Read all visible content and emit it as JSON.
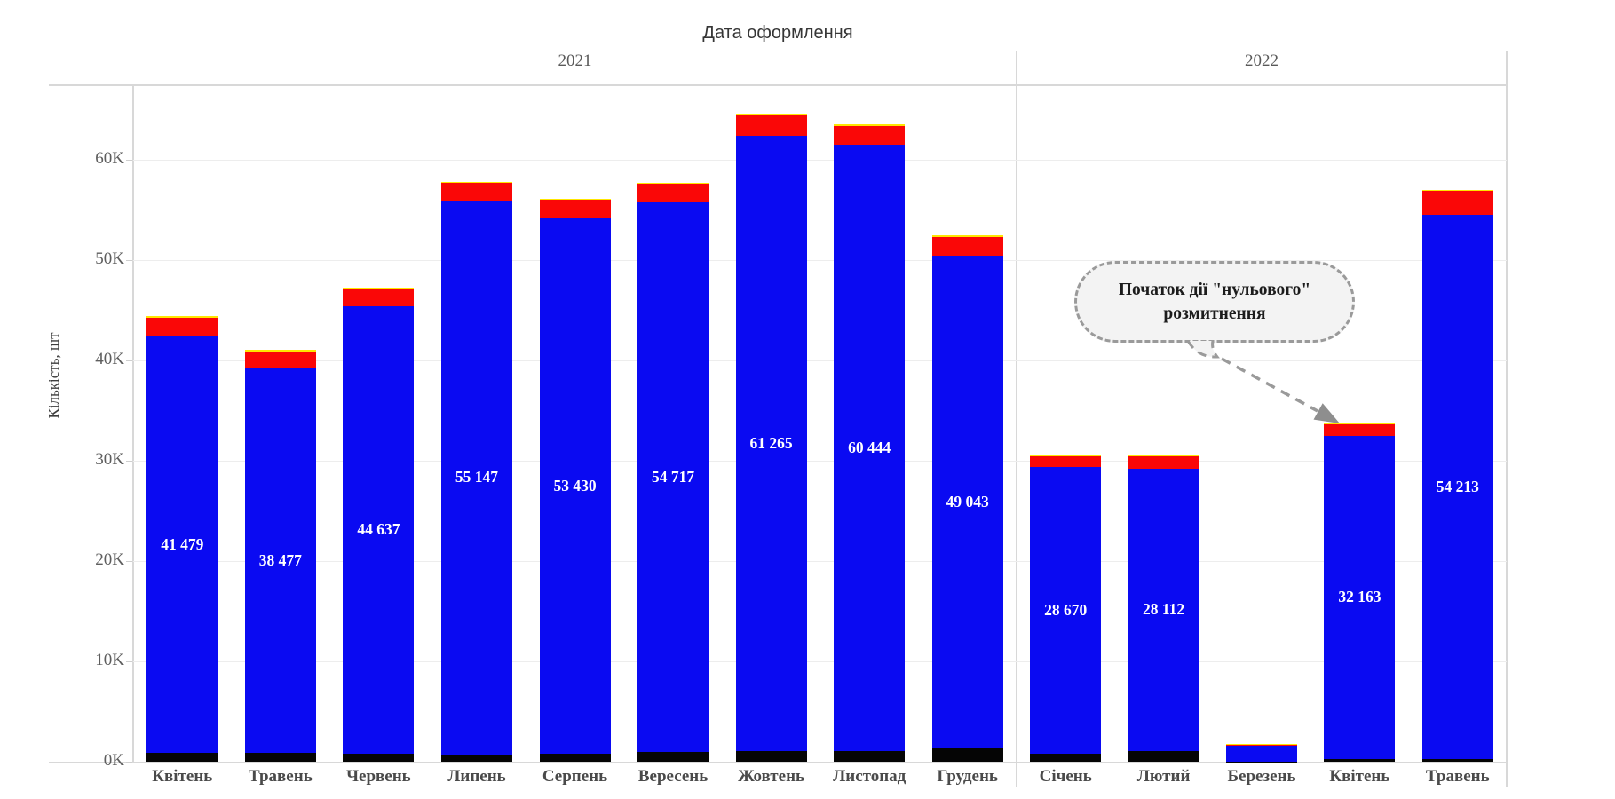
{
  "header": {
    "title": "Дата оформлення"
  },
  "y_axis": {
    "title": "Кількість, шт",
    "tick_labels": [
      "0K",
      "10K",
      "20K",
      "30K",
      "40K",
      "50K",
      "60K"
    ],
    "tick_values": [
      0,
      10000,
      20000,
      30000,
      40000,
      50000,
      60000
    ]
  },
  "annotation": {
    "line1": "Початок дії \"нульового\"",
    "line2": "розмитнення"
  },
  "colors": {
    "bar_blue": "#0a0af2",
    "bar_red": "#fa0707",
    "bar_yellow": "#ffe600",
    "bar_black": "#050505",
    "gridline": "#ededed",
    "axis_line": "#d8d8d8",
    "month_label": "#4a4a4a",
    "tick_label": "#5e5e5e",
    "value_label": "#ffffff",
    "annotation_border": "#9a9a9a",
    "annotation_fill": "#f3f3f3",
    "arrow": "#8e8e8e"
  },
  "chart_data": {
    "type": "bar",
    "stacked": true,
    "title": "Дата оформлення",
    "xlabel": "Дата оформлення",
    "ylabel": "Кількість, шт",
    "ylim": [
      0,
      67500
    ],
    "yticks": [
      0,
      10000,
      20000,
      30000,
      40000,
      50000,
      60000
    ],
    "ytick_labels": [
      "0K",
      "10K",
      "20K",
      "30K",
      "40K",
      "50K",
      "60K"
    ],
    "grid": "horizontal",
    "legend": "none",
    "segment_order": [
      "black",
      "blue",
      "red",
      "yellow"
    ],
    "segment_colors": {
      "black": "#050505",
      "blue": "#0a0af2",
      "red": "#fa0707",
      "yellow": "#ffe600"
    },
    "groups": [
      {
        "year": "2021",
        "months": [
          {
            "label": "Квітень",
            "value_label": "41 479",
            "segments": {
              "black": 900,
              "blue": 41479,
              "red": 1900,
              "yellow": 120
            }
          },
          {
            "label": "Травень",
            "value_label": "38 477",
            "segments": {
              "black": 850,
              "blue": 38477,
              "red": 1600,
              "yellow": 120
            }
          },
          {
            "label": "Червень",
            "value_label": "44 637",
            "segments": {
              "black": 800,
              "blue": 44637,
              "red": 1700,
              "yellow": 120
            }
          },
          {
            "label": "Липень",
            "value_label": "55 147",
            "segments": {
              "black": 750,
              "blue": 55147,
              "red": 1800,
              "yellow": 120
            }
          },
          {
            "label": "Серпень",
            "value_label": "53 430",
            "segments": {
              "black": 800,
              "blue": 53430,
              "red": 1800,
              "yellow": 120
            }
          },
          {
            "label": "Вересень",
            "value_label": "54 717",
            "segments": {
              "black": 1000,
              "blue": 54717,
              "red": 1900,
              "yellow": 120
            }
          },
          {
            "label": "Жовтень",
            "value_label": "61 265",
            "segments": {
              "black": 1100,
              "blue": 61265,
              "red": 2100,
              "yellow": 120
            }
          },
          {
            "label": "Листопад",
            "value_label": "60 444",
            "segments": {
              "black": 1050,
              "blue": 60444,
              "red": 1900,
              "yellow": 120
            }
          },
          {
            "label": "Грудень",
            "value_label": "49 043",
            "segments": {
              "black": 1400,
              "blue": 49043,
              "red": 1900,
              "yellow": 120
            }
          }
        ]
      },
      {
        "year": "2022",
        "months": [
          {
            "label": "Січень",
            "value_label": "28 670",
            "segments": {
              "black": 750,
              "blue": 28670,
              "red": 1050,
              "yellow": 120
            }
          },
          {
            "label": "Лютий",
            "value_label": "28 112",
            "segments": {
              "black": 1100,
              "blue": 28112,
              "red": 1250,
              "yellow": 120
            }
          },
          {
            "label": "Березень",
            "value_label": null,
            "segments": {
              "black": 30,
              "blue": 1600,
              "red": 40,
              "yellow": 100
            }
          },
          {
            "label": "Квітень",
            "value_label": "32 163",
            "segments": {
              "black": 300,
              "blue": 32163,
              "red": 1200,
              "yellow": 120
            }
          },
          {
            "label": "Травень",
            "value_label": "54 213",
            "segments": {
              "black": 300,
              "blue": 54213,
              "red": 2400,
              "yellow": 120
            }
          }
        ]
      }
    ]
  }
}
